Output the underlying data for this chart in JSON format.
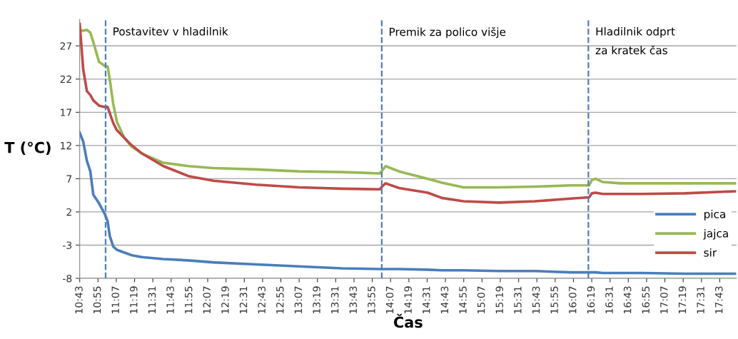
{
  "chart_data": {
    "type": "line",
    "xlabel": "Čas",
    "ylabel": "T (°C)",
    "x": [
      10.717,
      10.755,
      10.795,
      10.833,
      10.865,
      10.928,
      10.99,
      11.022,
      11.045,
      11.083,
      11.123,
      11.202,
      11.28,
      11.397,
      11.632,
      11.905,
      12.178,
      12.647,
      13.115,
      13.585,
      13.998,
      14.03,
      14.062,
      14.21,
      14.522,
      14.678,
      14.913,
      15.303,
      15.693,
      16.085,
      16.288,
      16.318,
      16.358,
      16.437,
      16.632,
      16.867,
      17.335,
      17.882
    ],
    "series": [
      {
        "name": "pica",
        "color": "#4a7ebb",
        "values": [
          13.9,
          12.6,
          9.7,
          8.1,
          4.6,
          3.3,
          1.7,
          0.6,
          -1.6,
          -3.2,
          -3.7,
          -4.1,
          -4.5,
          -4.8,
          -5.1,
          -5.3,
          -5.6,
          -5.9,
          -6.2,
          -6.5,
          -6.6,
          -6.6,
          -6.6,
          -6.6,
          -6.7,
          -6.8,
          -6.8,
          -6.9,
          -6.9,
          -7.1,
          -7.1,
          -7.1,
          -7.1,
          -7.2,
          -7.2,
          -7.2,
          -7.3,
          -7.3
        ]
      },
      {
        "name": "jajca",
        "color": "#98b954",
        "values": [
          29.3,
          29.3,
          29.4,
          29.0,
          27.6,
          24.6,
          24.0,
          23.9,
          22.0,
          18.3,
          15.6,
          13.2,
          11.9,
          10.8,
          9.4,
          8.9,
          8.6,
          8.4,
          8.1,
          8.0,
          7.8,
          8.3,
          8.9,
          8.1,
          7.0,
          6.4,
          5.7,
          5.7,
          5.8,
          6.0,
          6.0,
          6.8,
          7.0,
          6.5,
          6.3,
          6.3,
          6.3,
          6.3
        ]
      },
      {
        "name": "sir",
        "color": "#be4b48",
        "values": [
          30.3,
          23.5,
          20.2,
          19.6,
          18.8,
          18.0,
          17.8,
          17.8,
          16.9,
          15.4,
          14.3,
          13.2,
          12.1,
          10.8,
          8.9,
          7.4,
          6.7,
          6.1,
          5.7,
          5.5,
          5.4,
          5.9,
          6.3,
          5.6,
          4.9,
          4.1,
          3.6,
          3.4,
          3.6,
          4.0,
          4.2,
          4.8,
          4.9,
          4.7,
          4.7,
          4.7,
          4.8,
          5.1
        ]
      }
    ],
    "xlim": [
      10.7167,
      17.9
    ],
    "xticks": [
      {
        "value": 10.7167,
        "label": "10:43"
      },
      {
        "value": 10.9167,
        "label": "10:55"
      },
      {
        "value": 11.1167,
        "label": "11:07"
      },
      {
        "value": 11.3167,
        "label": "11:19"
      },
      {
        "value": 11.5167,
        "label": "11:31"
      },
      {
        "value": 11.7167,
        "label": "11:43"
      },
      {
        "value": 11.9167,
        "label": "11:55"
      },
      {
        "value": 12.1167,
        "label": "12:07"
      },
      {
        "value": 12.3167,
        "label": "12:19"
      },
      {
        "value": 12.5167,
        "label": "12:31"
      },
      {
        "value": 12.7167,
        "label": "12:43"
      },
      {
        "value": 12.9167,
        "label": "12:55"
      },
      {
        "value": 13.1167,
        "label": "13:07"
      },
      {
        "value": 13.3167,
        "label": "13:19"
      },
      {
        "value": 13.5167,
        "label": "13:31"
      },
      {
        "value": 13.7167,
        "label": "13:43"
      },
      {
        "value": 13.9167,
        "label": "13:55"
      },
      {
        "value": 14.1167,
        "label": "14:07"
      },
      {
        "value": 14.3167,
        "label": "14:19"
      },
      {
        "value": 14.5167,
        "label": "14:31"
      },
      {
        "value": 14.7167,
        "label": "14:43"
      },
      {
        "value": 14.9167,
        "label": "14:55"
      },
      {
        "value": 15.1167,
        "label": "15:07"
      },
      {
        "value": 15.3167,
        "label": "15:19"
      },
      {
        "value": 15.5167,
        "label": "15:31"
      },
      {
        "value": 15.7167,
        "label": "15:43"
      },
      {
        "value": 15.9167,
        "label": "15:55"
      },
      {
        "value": 16.1167,
        "label": "16:07"
      },
      {
        "value": 16.3167,
        "label": "16:19"
      },
      {
        "value": 16.5167,
        "label": "16:31"
      },
      {
        "value": 16.7167,
        "label": "16:43"
      },
      {
        "value": 16.9167,
        "label": "16:55"
      },
      {
        "value": 17.1167,
        "label": "17:07"
      },
      {
        "value": 17.3167,
        "label": "17:19"
      },
      {
        "value": 17.5167,
        "label": "17:31"
      },
      {
        "value": 17.7167,
        "label": "17:43"
      }
    ],
    "ylim": [
      -8,
      31
    ],
    "yticks": [
      -8,
      -3,
      2,
      7,
      12,
      17,
      22,
      27
    ],
    "ref_lines": [
      {
        "axis": "x",
        "value": 11.0,
        "label": "Postavitev v hladilnik",
        "color": "#4a7ebb",
        "line_style": "dashed"
      },
      {
        "axis": "x",
        "value": 14.02,
        "label": "Premik za polico višje",
        "color": "#4a7ebb",
        "line_style": "dashed"
      },
      {
        "axis": "x",
        "value": 16.28,
        "label": "Hladilnik odprt\nza kratek čas",
        "color": "#4a7ebb",
        "line_style": "dashed"
      }
    ],
    "grid": "y",
    "legend": "right",
    "marker": "none",
    "line_style": "solid"
  }
}
